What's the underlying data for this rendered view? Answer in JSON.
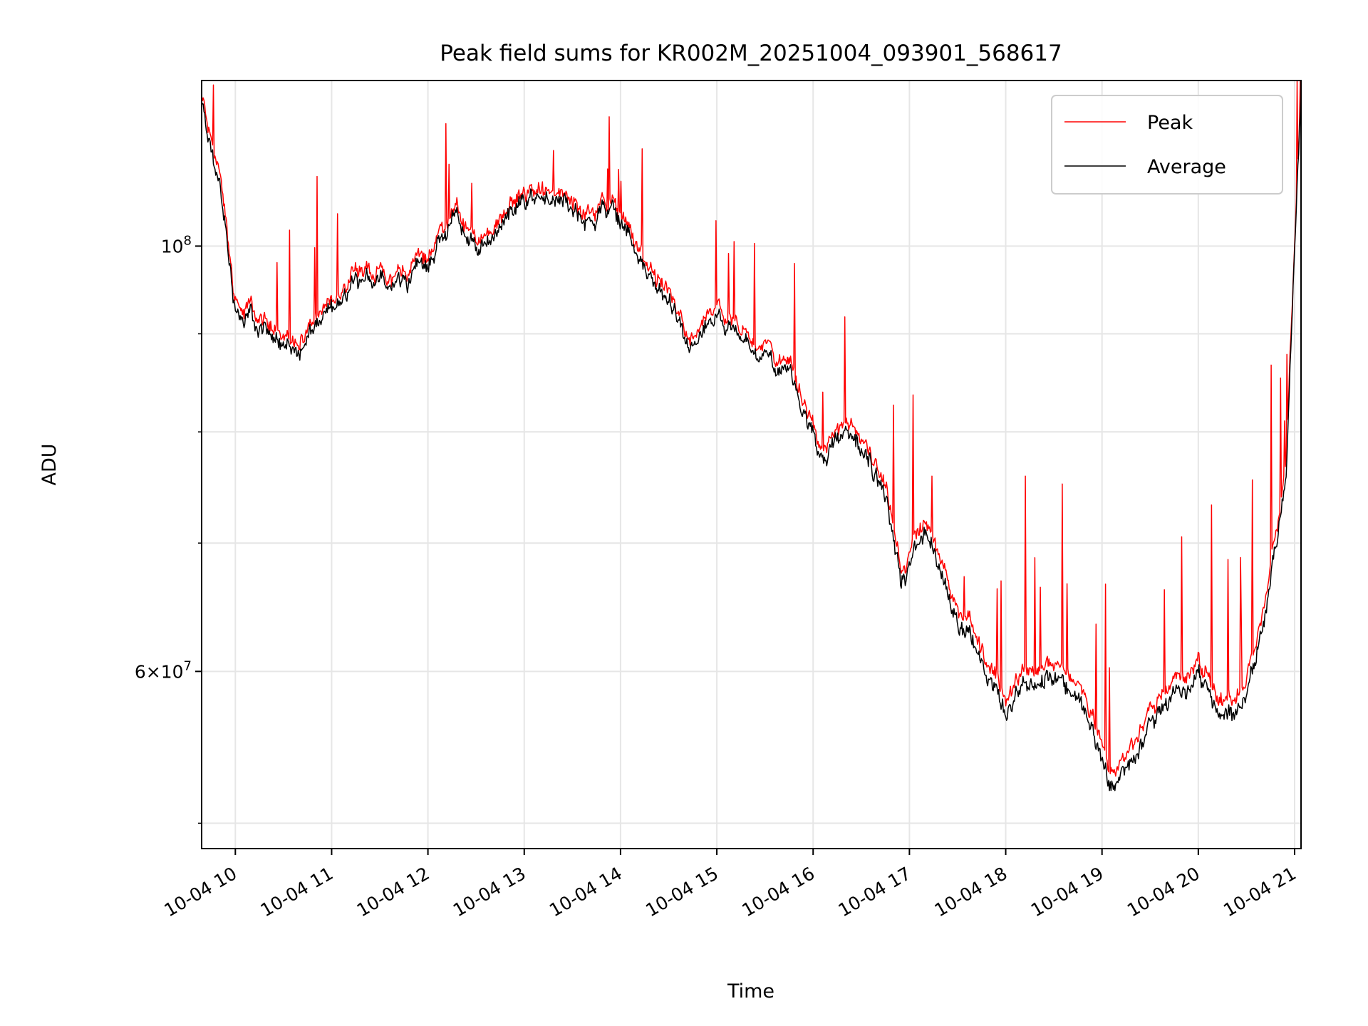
{
  "chart_data": {
    "type": "line",
    "title": "Peak field sums for KR002M_20251004_093901_568617",
    "xlabel": "Time",
    "ylabel": "ADU",
    "yscale": "log",
    "xlim": [
      "2025-10-04 09:39",
      "2025-10-04 21:04"
    ],
    "ylim": [
      48500000,
      122000000
    ],
    "x_ticks": [
      "10-04 10",
      "10-04 11",
      "10-04 12",
      "10-04 13",
      "10-04 14",
      "10-04 15",
      "10-04 16",
      "10-04 17",
      "10-04 18",
      "10-04 19",
      "10-04 20",
      "10-04 21"
    ],
    "y_major_ticks": [
      {
        "value": 100000000,
        "base": "10",
        "exp": "8"
      },
      {
        "value": 60000000,
        "base": "6×10",
        "exp": "7"
      }
    ],
    "grid": true,
    "legend_position": "top-right",
    "series": [
      {
        "name": "Peak",
        "color": "#ff0000",
        "x": [
          "2025-10-04 09:39",
          "2025-10-04 09:50",
          "2025-10-04 10:00",
          "2025-10-04 10:20",
          "2025-10-04 10:42",
          "2025-10-04 11:00",
          "2025-10-04 11:15",
          "2025-10-04 11:35",
          "2025-10-04 12:00",
          "2025-10-04 12:15",
          "2025-10-04 12:30",
          "2025-10-04 12:50",
          "2025-10-04 13:05",
          "2025-10-04 13:20",
          "2025-10-04 13:45",
          "2025-10-04 13:55",
          "2025-10-04 14:10",
          "2025-10-04 14:30",
          "2025-10-04 14:45",
          "2025-10-04 15:00",
          "2025-10-04 15:15",
          "2025-10-04 15:30",
          "2025-10-04 15:45",
          "2025-10-04 15:55",
          "2025-10-04 16:05",
          "2025-10-04 16:25",
          "2025-10-04 16:45",
          "2025-10-04 16:55",
          "2025-10-04 17:10",
          "2025-10-04 17:25",
          "2025-10-04 17:45",
          "2025-10-04 18:00",
          "2025-10-04 18:30",
          "2025-10-04 18:50",
          "2025-10-04 19:05",
          "2025-10-04 19:15",
          "2025-10-04 19:30",
          "2025-10-04 19:45",
          "2025-10-04 20:00",
          "2025-10-04 20:15",
          "2025-10-04 20:30",
          "2025-10-04 20:45",
          "2025-10-04 20:55",
          "2025-10-04 21:04"
        ],
        "y": [
          119500000,
          109000000,
          93500000,
          91000000,
          89500000,
          93500000,
          98000000,
          96000000,
          99000000,
          104500000,
          100000000,
          105000000,
          107500000,
          106000000,
          105000000,
          106000000,
          100500000,
          94000000,
          90000000,
          92500000,
          89500000,
          89000000,
          87000000,
          83000000,
          79000000,
          80500000,
          75500000,
          67000000,
          72500000,
          66500000,
          61500000,
          58500000,
          61000000,
          58000000,
          53000000,
          54500000,
          57000000,
          59500000,
          61000000,
          58000000,
          58500000,
          68000000,
          78000000,
          122000000
        ]
      },
      {
        "name": "Average",
        "color": "#000000",
        "x": [
          "2025-10-04 09:39",
          "2025-10-04 09:50",
          "2025-10-04 10:00",
          "2025-10-04 10:20",
          "2025-10-04 10:42",
          "2025-10-04 11:00",
          "2025-10-04 11:15",
          "2025-10-04 11:35",
          "2025-10-04 12:00",
          "2025-10-04 12:15",
          "2025-10-04 12:30",
          "2025-10-04 12:50",
          "2025-10-04 13:05",
          "2025-10-04 13:20",
          "2025-10-04 13:45",
          "2025-10-04 13:55",
          "2025-10-04 14:10",
          "2025-10-04 14:30",
          "2025-10-04 14:45",
          "2025-10-04 15:00",
          "2025-10-04 15:15",
          "2025-10-04 15:30",
          "2025-10-04 15:45",
          "2025-10-04 15:55",
          "2025-10-04 16:05",
          "2025-10-04 16:25",
          "2025-10-04 16:45",
          "2025-10-04 16:55",
          "2025-10-04 17:10",
          "2025-10-04 17:25",
          "2025-10-04 17:45",
          "2025-10-04 18:00",
          "2025-10-04 18:30",
          "2025-10-04 18:50",
          "2025-10-04 19:05",
          "2025-10-04 19:15",
          "2025-10-04 19:30",
          "2025-10-04 19:45",
          "2025-10-04 20:00",
          "2025-10-04 20:15",
          "2025-10-04 20:30",
          "2025-10-04 20:45",
          "2025-10-04 20:55",
          "2025-10-04 21:04"
        ],
        "y": [
          118500000,
          107500000,
          92500000,
          90000000,
          88500000,
          92500000,
          97000000,
          95000000,
          98000000,
          103500000,
          99000000,
          104000000,
          106500000,
          105000000,
          104000000,
          105000000,
          99500000,
          93000000,
          89000000,
          91500000,
          88500000,
          88000000,
          86000000,
          82000000,
          78000000,
          79500000,
          74500000,
          66000000,
          71500000,
          65500000,
          60500000,
          57500000,
          60000000,
          57000000,
          52000000,
          53500000,
          56000000,
          58500000,
          60000000,
          57000000,
          57500000,
          67000000,
          77000000,
          121000000
        ]
      }
    ]
  }
}
